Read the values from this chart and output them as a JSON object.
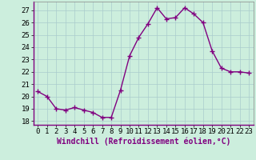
{
  "x": [
    0,
    1,
    2,
    3,
    4,
    5,
    6,
    7,
    8,
    9,
    10,
    11,
    12,
    13,
    14,
    15,
    16,
    17,
    18,
    19,
    20,
    21,
    22,
    23
  ],
  "y": [
    20.4,
    20.0,
    19.0,
    18.9,
    19.1,
    18.9,
    18.7,
    18.3,
    18.3,
    20.5,
    23.3,
    24.8,
    25.9,
    27.2,
    26.3,
    26.4,
    27.2,
    26.7,
    26.0,
    23.7,
    22.3,
    22.0,
    22.0,
    21.9
  ],
  "line_color": "#800080",
  "marker": "+",
  "marker_size": 4,
  "marker_linewidth": 1.0,
  "xlabel": "Windchill (Refroidissement éolien,°C)",
  "xlabel_fontsize": 7,
  "xlim": [
    -0.5,
    23.5
  ],
  "ylim": [
    17.7,
    27.7
  ],
  "yticks": [
    18,
    19,
    20,
    21,
    22,
    23,
    24,
    25,
    26,
    27
  ],
  "xticks": [
    0,
    1,
    2,
    3,
    4,
    5,
    6,
    7,
    8,
    9,
    10,
    11,
    12,
    13,
    14,
    15,
    16,
    17,
    18,
    19,
    20,
    21,
    22,
    23
  ],
  "grid_color": "#aacccc",
  "background_color": "#cceedd",
  "tick_fontsize": 6.5,
  "line_width": 1.0,
  "spine_color": "#888888",
  "bottom_spine_color": "#800080"
}
